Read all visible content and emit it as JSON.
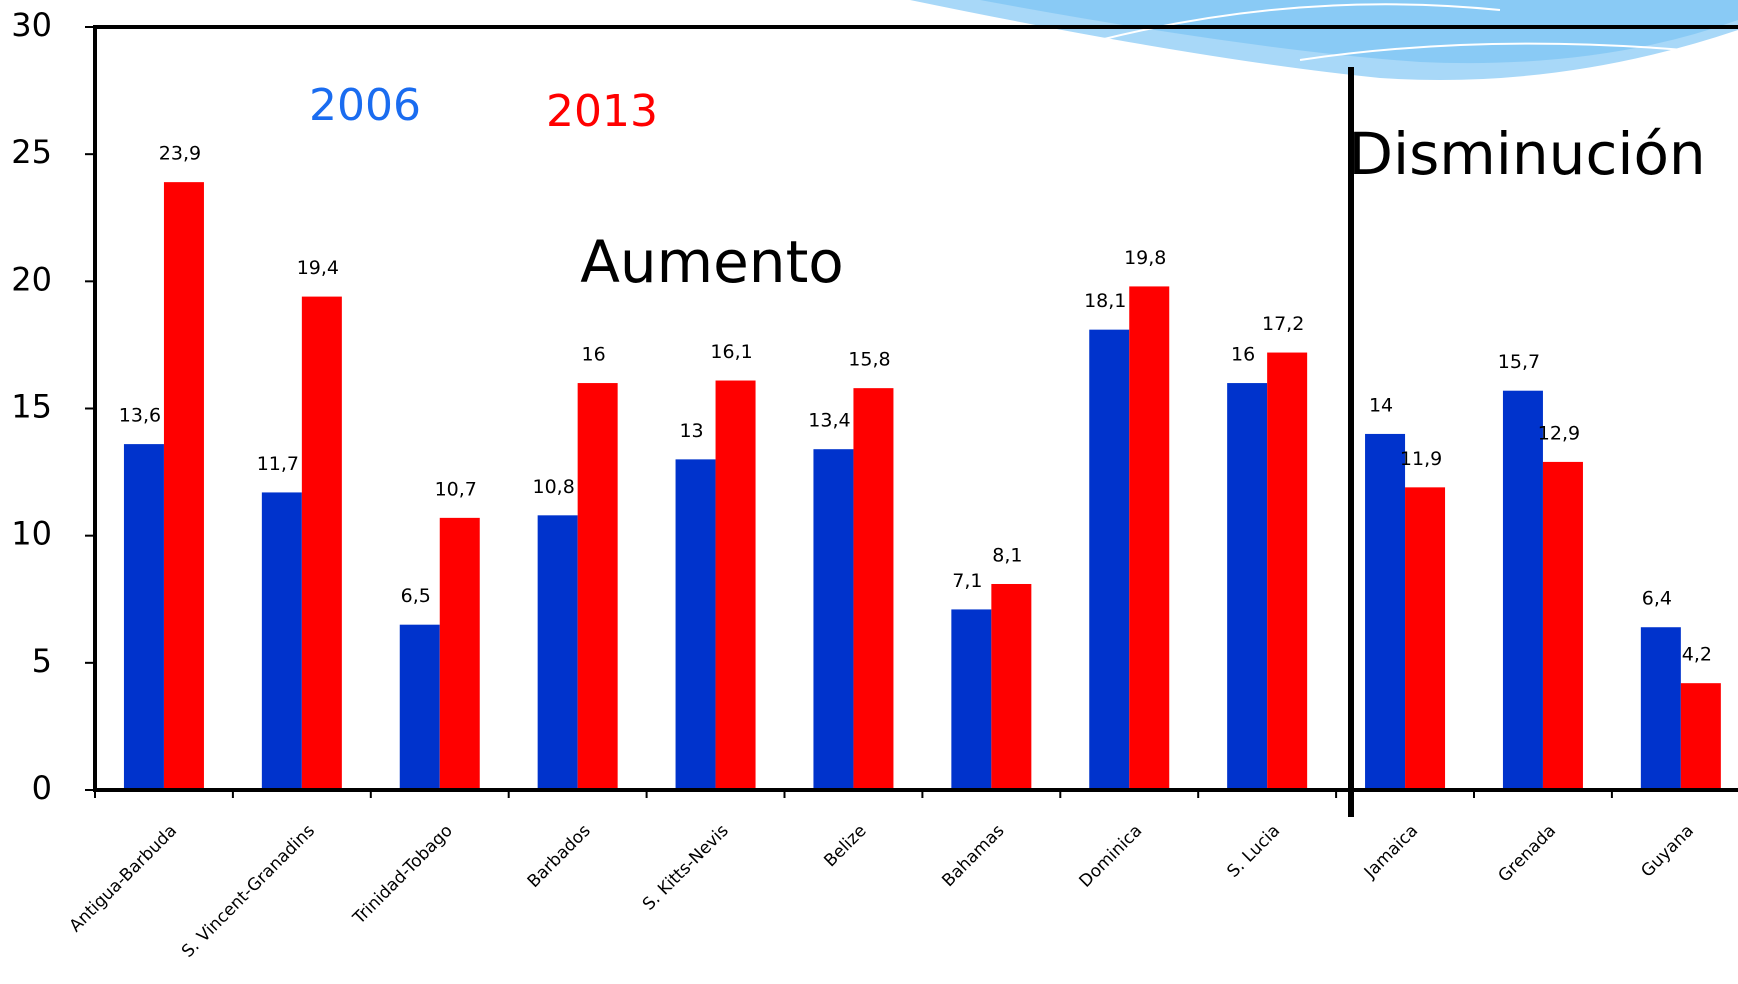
{
  "chart_data": {
    "type": "bar",
    "categories": [
      "Antigua-Barbuda",
      "S. Vincent-Granadins",
      "Trinidad-Tobago",
      "Barbados",
      "S. Kitts-Nevis",
      "Belize",
      "Bahamas",
      "Dominica",
      "S. Lucia",
      "Jamaica",
      "Grenada",
      "Guyana"
    ],
    "series": [
      {
        "name": "2006",
        "color": "#0033cc",
        "label_color": "#1a6cf0",
        "values": [
          13.6,
          11.7,
          6.5,
          10.8,
          13,
          13.4,
          7.1,
          18.1,
          16,
          14,
          15.7,
          6.4
        ],
        "value_labels": [
          "13,6",
          "11,7",
          "6,5",
          "10,8",
          "13",
          "13,4",
          "7,1",
          "18,1",
          "16",
          "14",
          "15,7",
          "6,4"
        ]
      },
      {
        "name": "2013",
        "color": "#ff0000",
        "label_color": "#ff0000",
        "values": [
          23.9,
          19.4,
          10.7,
          16,
          16.1,
          15.8,
          8.1,
          19.8,
          17.2,
          11.9,
          12.9,
          4.2
        ],
        "value_labels": [
          "23,9",
          "19,4",
          "10,7",
          "16",
          "16,1",
          "15,8",
          "8,1",
          "19,8",
          "17,2",
          "11,9",
          "12,9",
          "4,2"
        ]
      }
    ],
    "annotations": [
      "Aumento",
      "Disminución"
    ],
    "ylim": [
      0,
      30
    ],
    "yticks": [
      0,
      5,
      10,
      15,
      20,
      25,
      30
    ],
    "grid": false
  }
}
